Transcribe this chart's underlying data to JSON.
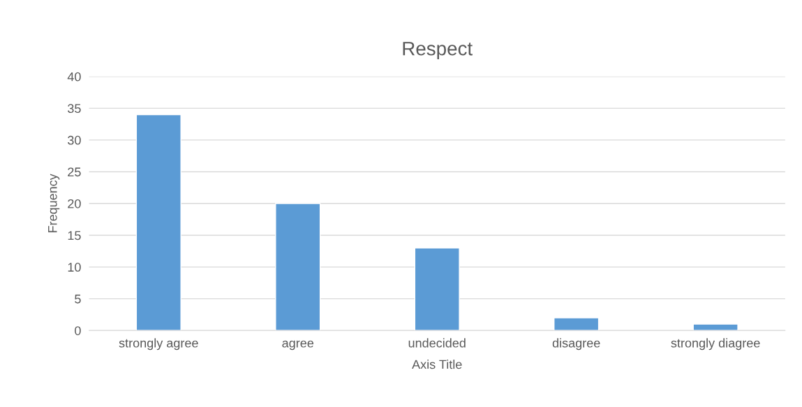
{
  "chart_data": {
    "type": "bar",
    "title": "Respect",
    "xlabel": "Axis Title",
    "ylabel": "Frequency",
    "categories": [
      "strongly agree",
      "agree",
      "undecided",
      "disagree",
      "strongly diagree"
    ],
    "values": [
      34,
      20,
      13,
      2,
      1
    ],
    "color": "#5b9bd5",
    "ylim": [
      0,
      40
    ],
    "yticks": [
      0,
      5,
      10,
      15,
      20,
      25,
      30,
      35,
      40
    ],
    "grid": "y",
    "legend": false
  }
}
